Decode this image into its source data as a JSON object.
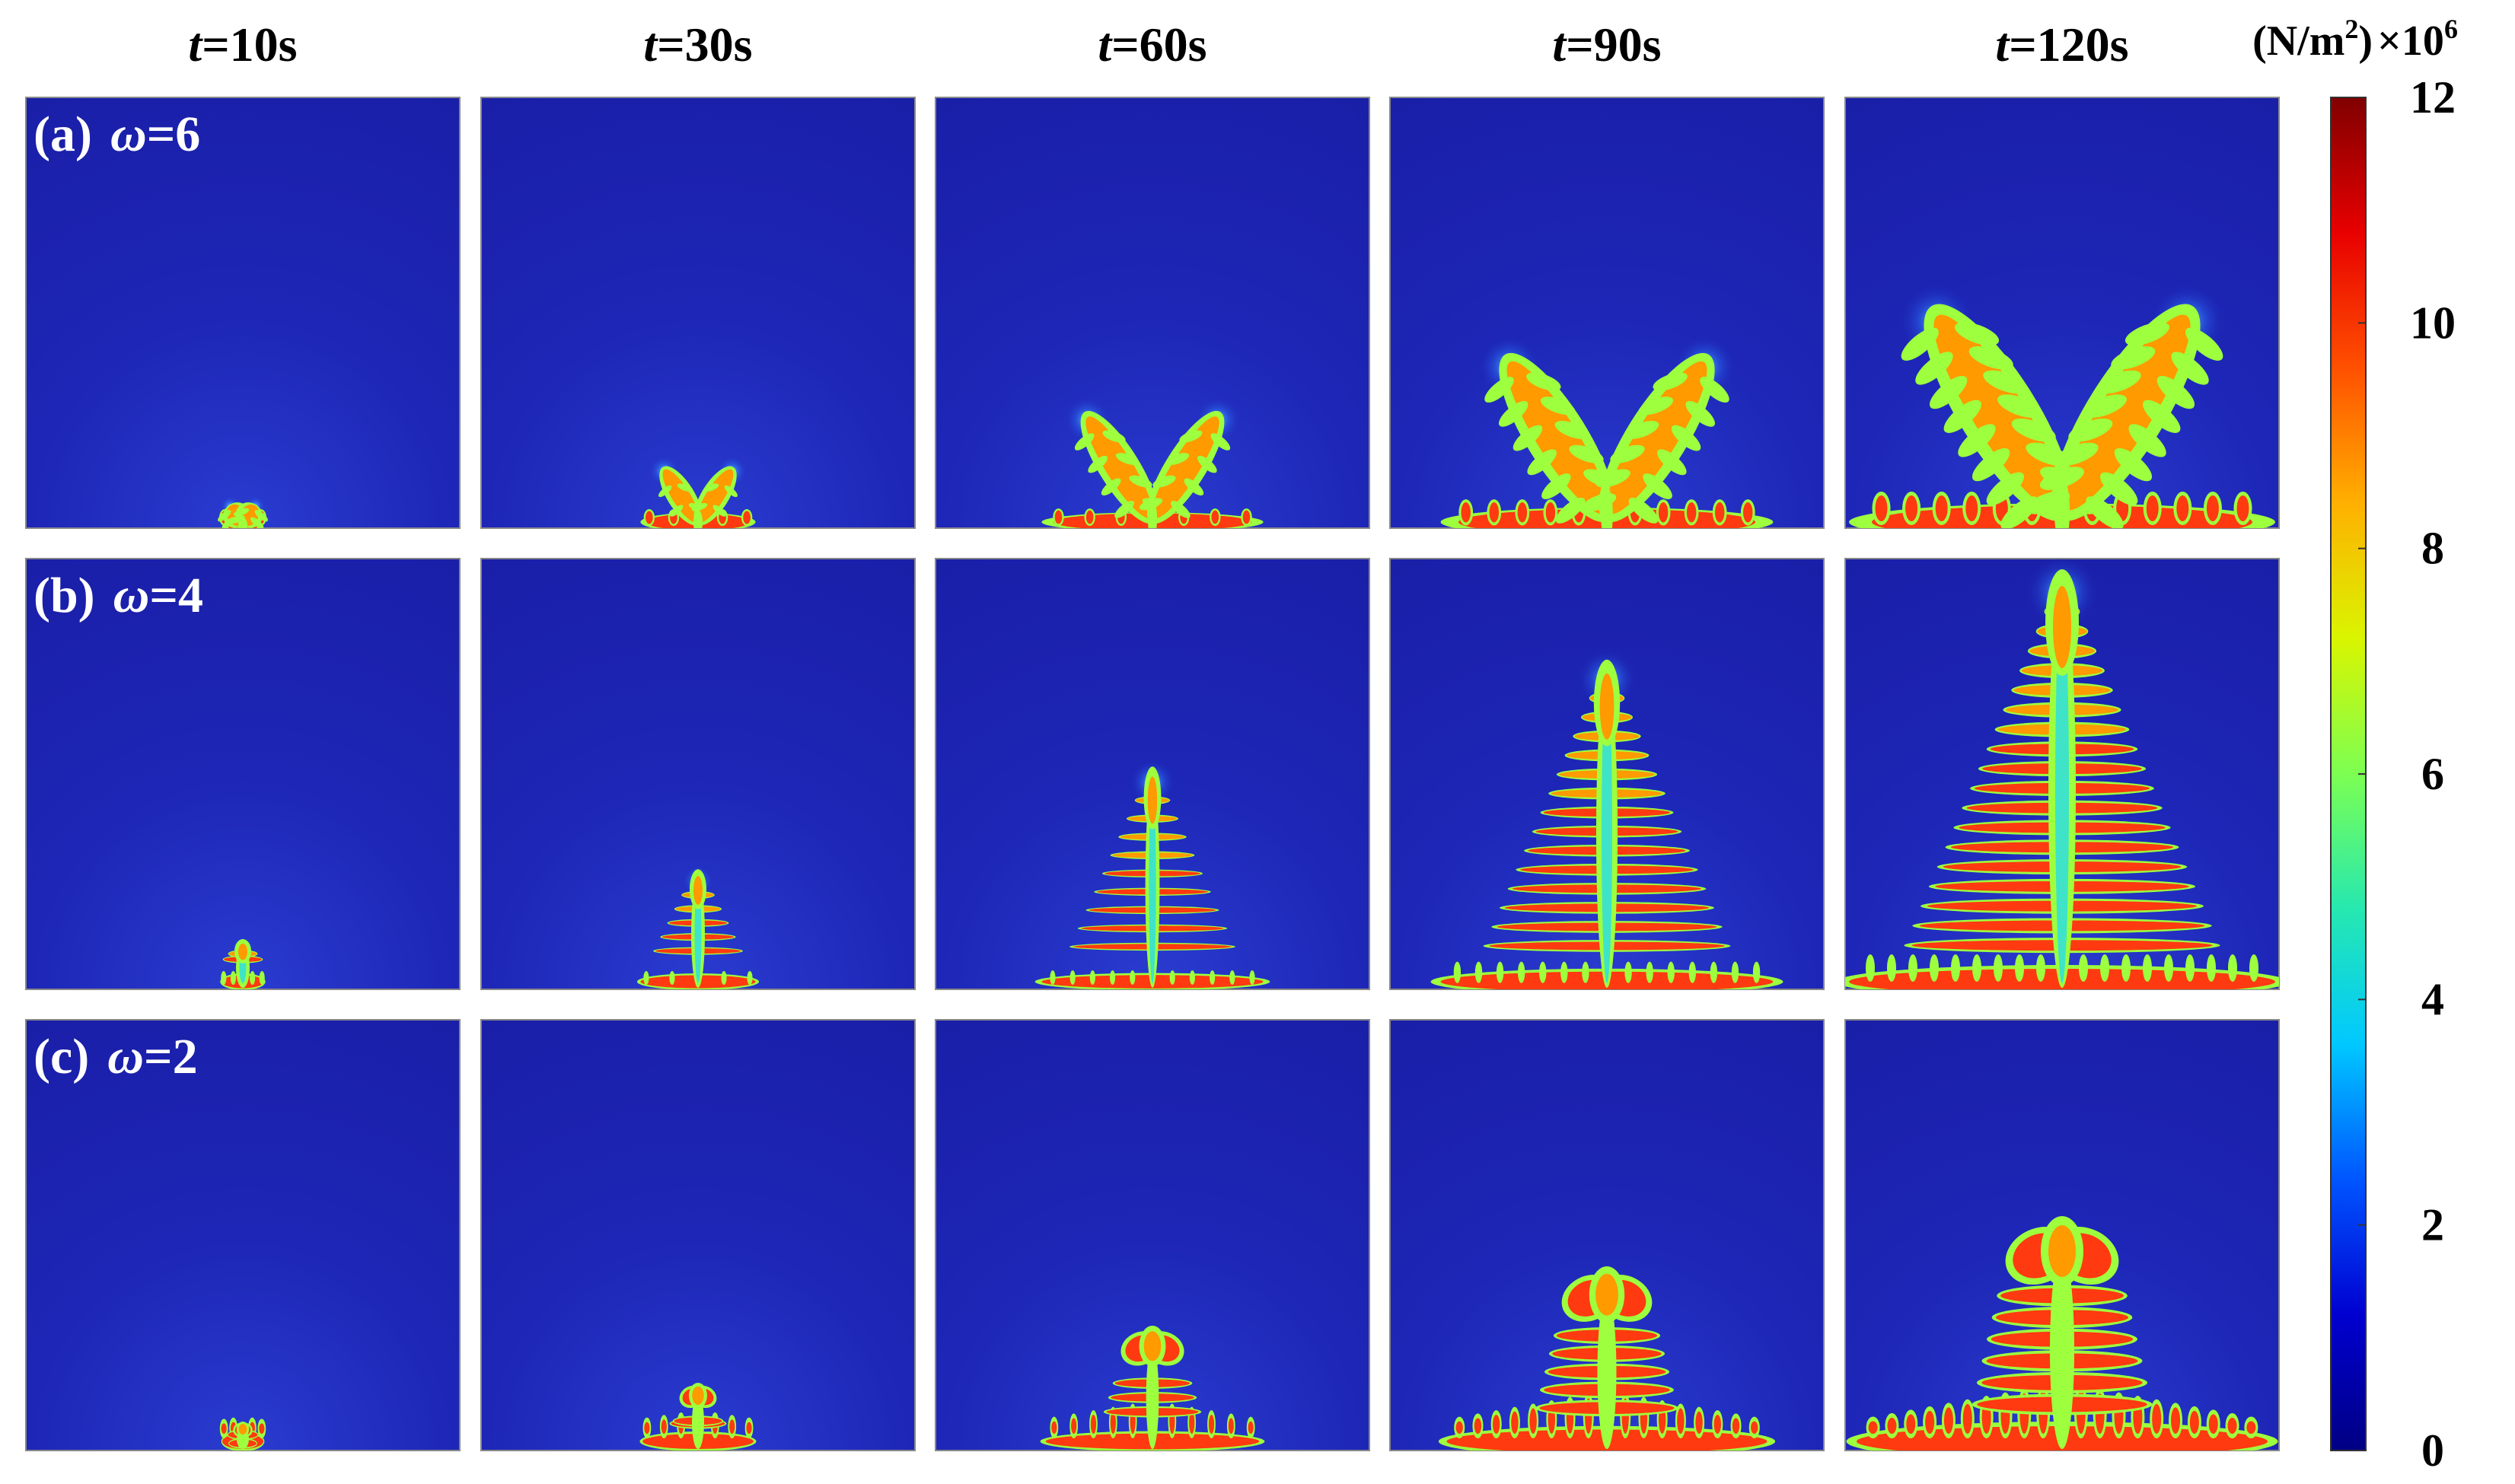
{
  "columns": [
    {
      "var": "t",
      "label": "=10s"
    },
    {
      "var": "t",
      "label": "=30s"
    },
    {
      "var": "t",
      "label": "=60s"
    },
    {
      "var": "t",
      "label": "=90s"
    },
    {
      "var": "t",
      "label": "=120s"
    }
  ],
  "rows": [
    {
      "tag": "(a)",
      "var": "ω",
      "value": "=6",
      "pattern": "v-shaped-dendrite"
    },
    {
      "tag": "(b)",
      "var": "ω",
      "value": "=4",
      "pattern": "central-needle-dendrite"
    },
    {
      "tag": "(c)",
      "var": "ω",
      "value": "=2",
      "pattern": "tulip-crown-dendrite"
    }
  ],
  "growth_fraction": [
    0.1,
    0.27,
    0.52,
    0.78,
    1.0
  ],
  "colorbar": {
    "unit_prefix": "(N/m",
    "unit_sup": "2",
    "unit_suffix": ")",
    "multiplier": "×10",
    "multiplier_sup": "6",
    "ticks": [
      "12",
      "10",
      "8",
      "6",
      "4",
      "2",
      "0"
    ],
    "range": [
      0,
      12
    ],
    "colormap": [
      "#000083",
      "#0000d0",
      "#0055ff",
      "#00c8ff",
      "#26e8b0",
      "#7cff52",
      "#d9f500",
      "#ffb000",
      "#ff5000",
      "#e80000",
      "#800000"
    ]
  },
  "colors": {
    "background_field": "#1c24b4",
    "body": "#ff3a10",
    "core": "#ff9a00",
    "rim": "#9dff3e",
    "glow": "#33b6ff"
  }
}
